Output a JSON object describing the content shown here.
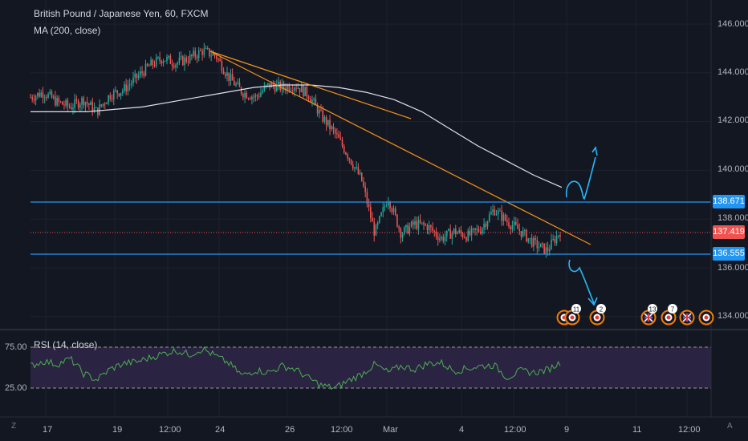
{
  "header": {
    "symbol_line": "British Pound / Japanese Yen, 60, FXCM",
    "ma_line": "MA (200, close)"
  },
  "rsi": {
    "label": "RSI (14, close)",
    "levels": [
      "75.00",
      "25.00"
    ]
  },
  "price_axis": [
    "146.000",
    "144.000",
    "142.000",
    "140.000",
    "138.000",
    "136.000",
    "134.000"
  ],
  "price_tags": {
    "upper": "138.671",
    "last": "137.419",
    "lower": "136.555"
  },
  "time_axis": [
    "17",
    "19",
    "12:00",
    "24",
    "26",
    "12:00",
    "Mar",
    "4",
    "12:00",
    "9",
    "11",
    "12:00"
  ],
  "events": [
    "11",
    "2",
    "13",
    "7"
  ],
  "corner": {
    "left": "Z",
    "right": "A"
  },
  "colors": {
    "background": "#131722",
    "bull": "#26a69a",
    "bear": "#ef5350",
    "ma": "#e0e3eb",
    "trendline": "#f7931a",
    "hline": "#2196f3",
    "last_line": "#ef5350",
    "drawing": "#29b6f6",
    "rsi": "#4caf50",
    "rsi_band": "#2a2342"
  },
  "chart_data": {
    "type": "line",
    "series": [
      {
        "values": [
          143,
          143.2,
          142.8,
          142.6,
          142.9,
          142.4,
          143.1,
          143.3,
          143.8,
          144.3,
          144.6,
          144.4,
          144.6,
          144.9,
          144.7,
          143.8,
          143.2,
          143.0,
          143.5,
          143.4,
          143.5,
          143.1,
          142.2,
          141.5,
          140.6,
          139.6,
          137.4,
          138.9,
          137.4,
          137.8,
          137.7,
          137.2,
          137.5,
          137.3,
          137.6,
          138.4,
          137.9,
          137.5,
          137.0,
          136.7,
          137.5
        ]
      },
      {
        "values": [
          142.4,
          142.4,
          142.4,
          142.5,
          142.6,
          142.8,
          143.0,
          143.2,
          143.4,
          143.5,
          143.5,
          143.4,
          143.2,
          142.9,
          142.4,
          141.7,
          141.0,
          140.4,
          139.8,
          139.3
        ]
      },
      {
        "values": [
          52,
          58,
          54,
          61,
          43,
          35,
          48,
          55,
          57,
          62,
          67,
          71,
          66,
          73,
          64,
          55,
          40,
          47,
          44,
          52,
          48,
          37,
          28,
          25,
          34,
          42,
          54,
          44,
          52,
          48,
          55,
          56,
          46,
          49,
          52,
          53,
          38,
          46,
          44,
          47,
          56
        ]
      }
    ],
    "ylim": [
      133.5,
      146.8
    ],
    "levels": [
      138.671,
      137.419,
      136.555
    ]
  }
}
